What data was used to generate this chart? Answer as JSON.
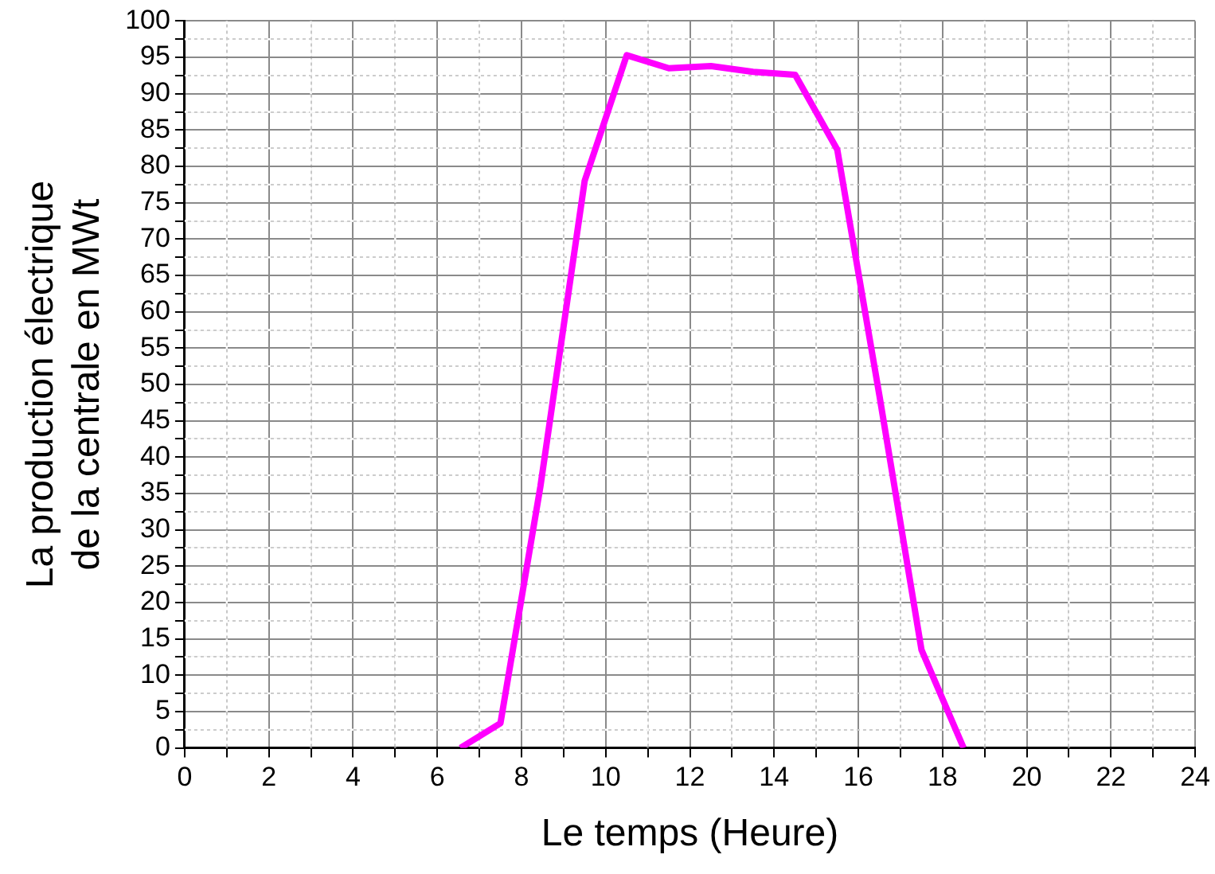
{
  "chart_data": {
    "type": "line",
    "xlabel": "Le temps (Heure)",
    "ylabel": "La production électrique\nde la centrale en MWt",
    "x": [
      6.55,
      7.5,
      8.45,
      9.5,
      10.5,
      11.5,
      12.5,
      13.5,
      14.5,
      15.5,
      16.5,
      17.5,
      18.5
    ],
    "series": [
      {
        "color": "#ff00ff",
        "values": [
          0,
          3.4,
          36,
          78,
          95.3,
          93.5,
          93.8,
          93,
          92.6,
          82.3,
          48.5,
          13.5,
          0
        ]
      }
    ],
    "xlim": [
      0,
      24
    ],
    "xticks": [
      0,
      2,
      4,
      6,
      8,
      10,
      12,
      14,
      16,
      18,
      20,
      22,
      24
    ],
    "ylim": [
      0,
      100
    ],
    "yticks": [
      0,
      5,
      10,
      15,
      20,
      25,
      30,
      35,
      40,
      45,
      50,
      55,
      60,
      65,
      70,
      75,
      80,
      85,
      90,
      95,
      100
    ],
    "grid": true,
    "legend": false,
    "marker": "none",
    "line_style": "solid"
  }
}
